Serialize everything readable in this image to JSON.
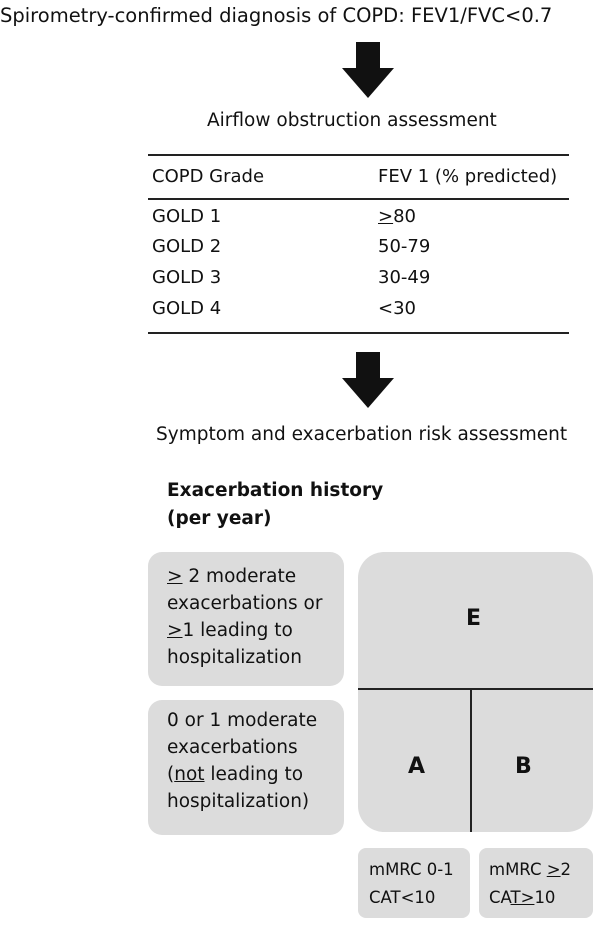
{
  "title": "Spirometry-confirmed diagnosis of COPD: FEV1/FVC<0.7",
  "airflow": {
    "heading": "Airflow obstruction assessment",
    "columns": [
      "COPD Grade",
      "FEV 1 (% predicted)"
    ],
    "rows": [
      {
        "grade": "GOLD 1",
        "fev_prefix": ">",
        "fev_rest": "80"
      },
      {
        "grade": "GOLD 2",
        "fev_prefix": "",
        "fev_rest": "50-79"
      },
      {
        "grade": "GOLD 3",
        "fev_prefix": "",
        "fev_rest": "30-49"
      },
      {
        "grade": "GOLD 4",
        "fev_prefix": "",
        "fev_rest": "<30"
      }
    ]
  },
  "risk": {
    "heading": "Symptom and exacerbation risk assessment",
    "history_heading_line1": "Exacerbation history",
    "history_heading_line2": "(per year)",
    "high_box": {
      "l1_u": ">",
      "l1_rest": " 2 moderate",
      "l2": "exacerbations or",
      "l3_u": ">",
      "l3_rest": "1 leading to",
      "l4": "hospitalization"
    },
    "low_box": {
      "l1": "0 or 1 moderate",
      "l2": "exacerbations",
      "l3_pre": "(",
      "l3_u": "not",
      "l3_rest": " leading to",
      "l4": "hospitalization)"
    },
    "groups": {
      "top": "E",
      "bottom_left": "A",
      "bottom_right": "B"
    },
    "symptoms_left": {
      "line1": "mMRC 0-1",
      "line2": "CAT<10"
    },
    "symptoms_right": {
      "line1_pre": "mMRC ",
      "line1_u": ">",
      "line1_rest": "2",
      "line2_pre": "CA",
      "line2_u": "T>",
      "line2_rest": "10"
    }
  }
}
